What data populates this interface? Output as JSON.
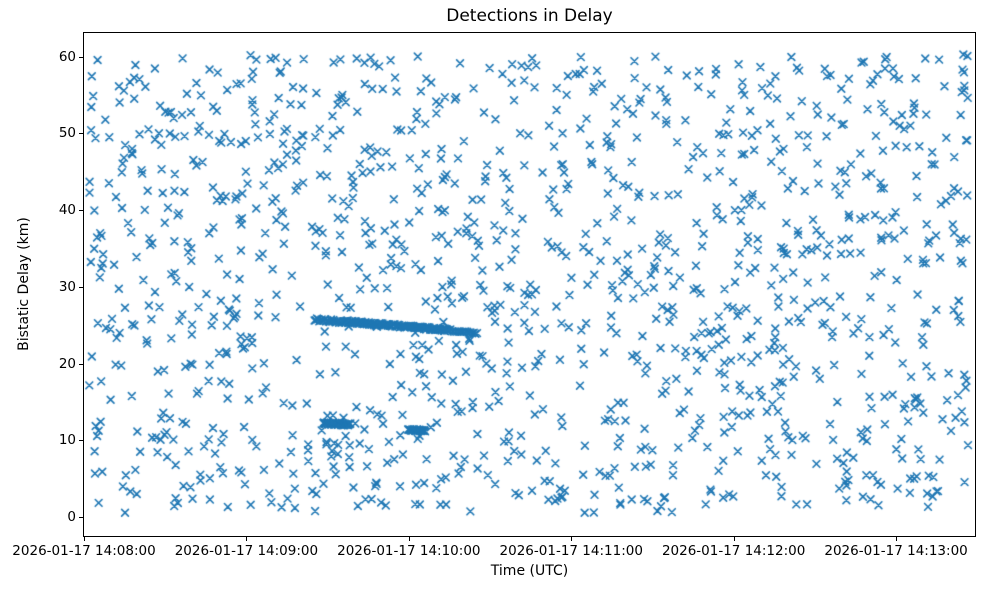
{
  "chart_data": {
    "type": "scatter",
    "title": "Detections in Delay",
    "xlabel": "Time (UTC)",
    "ylabel": "Bistatic Delay (km)",
    "marker": "x",
    "marker_color": "#1f77b4",
    "marker_size_px": 8,
    "axes_color": "#000000",
    "grid": false,
    "legend": null,
    "x_axis": {
      "base_time": "2026-01-17 14:08:00",
      "tick_minutes": [
        0,
        1,
        2,
        3,
        4,
        5
      ],
      "tick_labels": [
        "2026-01-17 14:08:00",
        "2026-01-17 14:09:00",
        "2026-01-17 14:10:00",
        "2026-01-17 14:11:00",
        "2026-01-17 14:12:00",
        "2026-01-17 14:13:00"
      ],
      "xlim_minutes": [
        0,
        5.486
      ]
    },
    "y_axis": {
      "ticks": [
        0,
        10,
        20,
        30,
        40,
        50,
        60
      ],
      "ylim": [
        -2.47,
        63.1
      ]
    },
    "background_points": {
      "description": "uniform random clutter detections filling the axes",
      "seed": 7,
      "count": 1300,
      "x_range_minutes": [
        0.03,
        5.45
      ],
      "y_range": [
        0.4,
        60.3
      ]
    },
    "tracks": [
      {
        "description": "lead-in of dense descending track near 25 km, 14:09:25-14:09:36",
        "seed": 1001,
        "count": 26,
        "x_minutes": [
          1.42,
          1.6
        ],
        "y": [
          25.7,
          25.5
        ],
        "y_jitter": 0.22
      },
      {
        "description": "solid dense descending track near 25 km, 14:09:36-14:10:14",
        "seed": 1002,
        "count": 135,
        "x_minutes": [
          1.6,
          2.235
        ],
        "y": [
          25.5,
          24.4
        ],
        "y_jitter": 0.18
      },
      {
        "description": "tapering tail of 25 km track, 14:10:14-14:10:25",
        "seed": 1003,
        "count": 19,
        "x_minutes": [
          2.235,
          2.42
        ],
        "y": [
          24.4,
          24.0
        ],
        "y_jitter": 0.13
      },
      {
        "description": "short dense track segment near 12 km, 14:09:28-14:09:38",
        "seed": 1004,
        "count": 45,
        "x_minutes": [
          1.474,
          1.64
        ],
        "y": [
          12.25,
          12.05
        ],
        "y_jitter": 0.15
      },
      {
        "description": "short dense track segment near 11.3 km, 14:10:00-14:10:06",
        "seed": 1005,
        "count": 30,
        "x_minutes": [
          1.996,
          2.1
        ],
        "y": [
          11.4,
          11.25
        ],
        "y_jitter": 0.12
      }
    ]
  }
}
